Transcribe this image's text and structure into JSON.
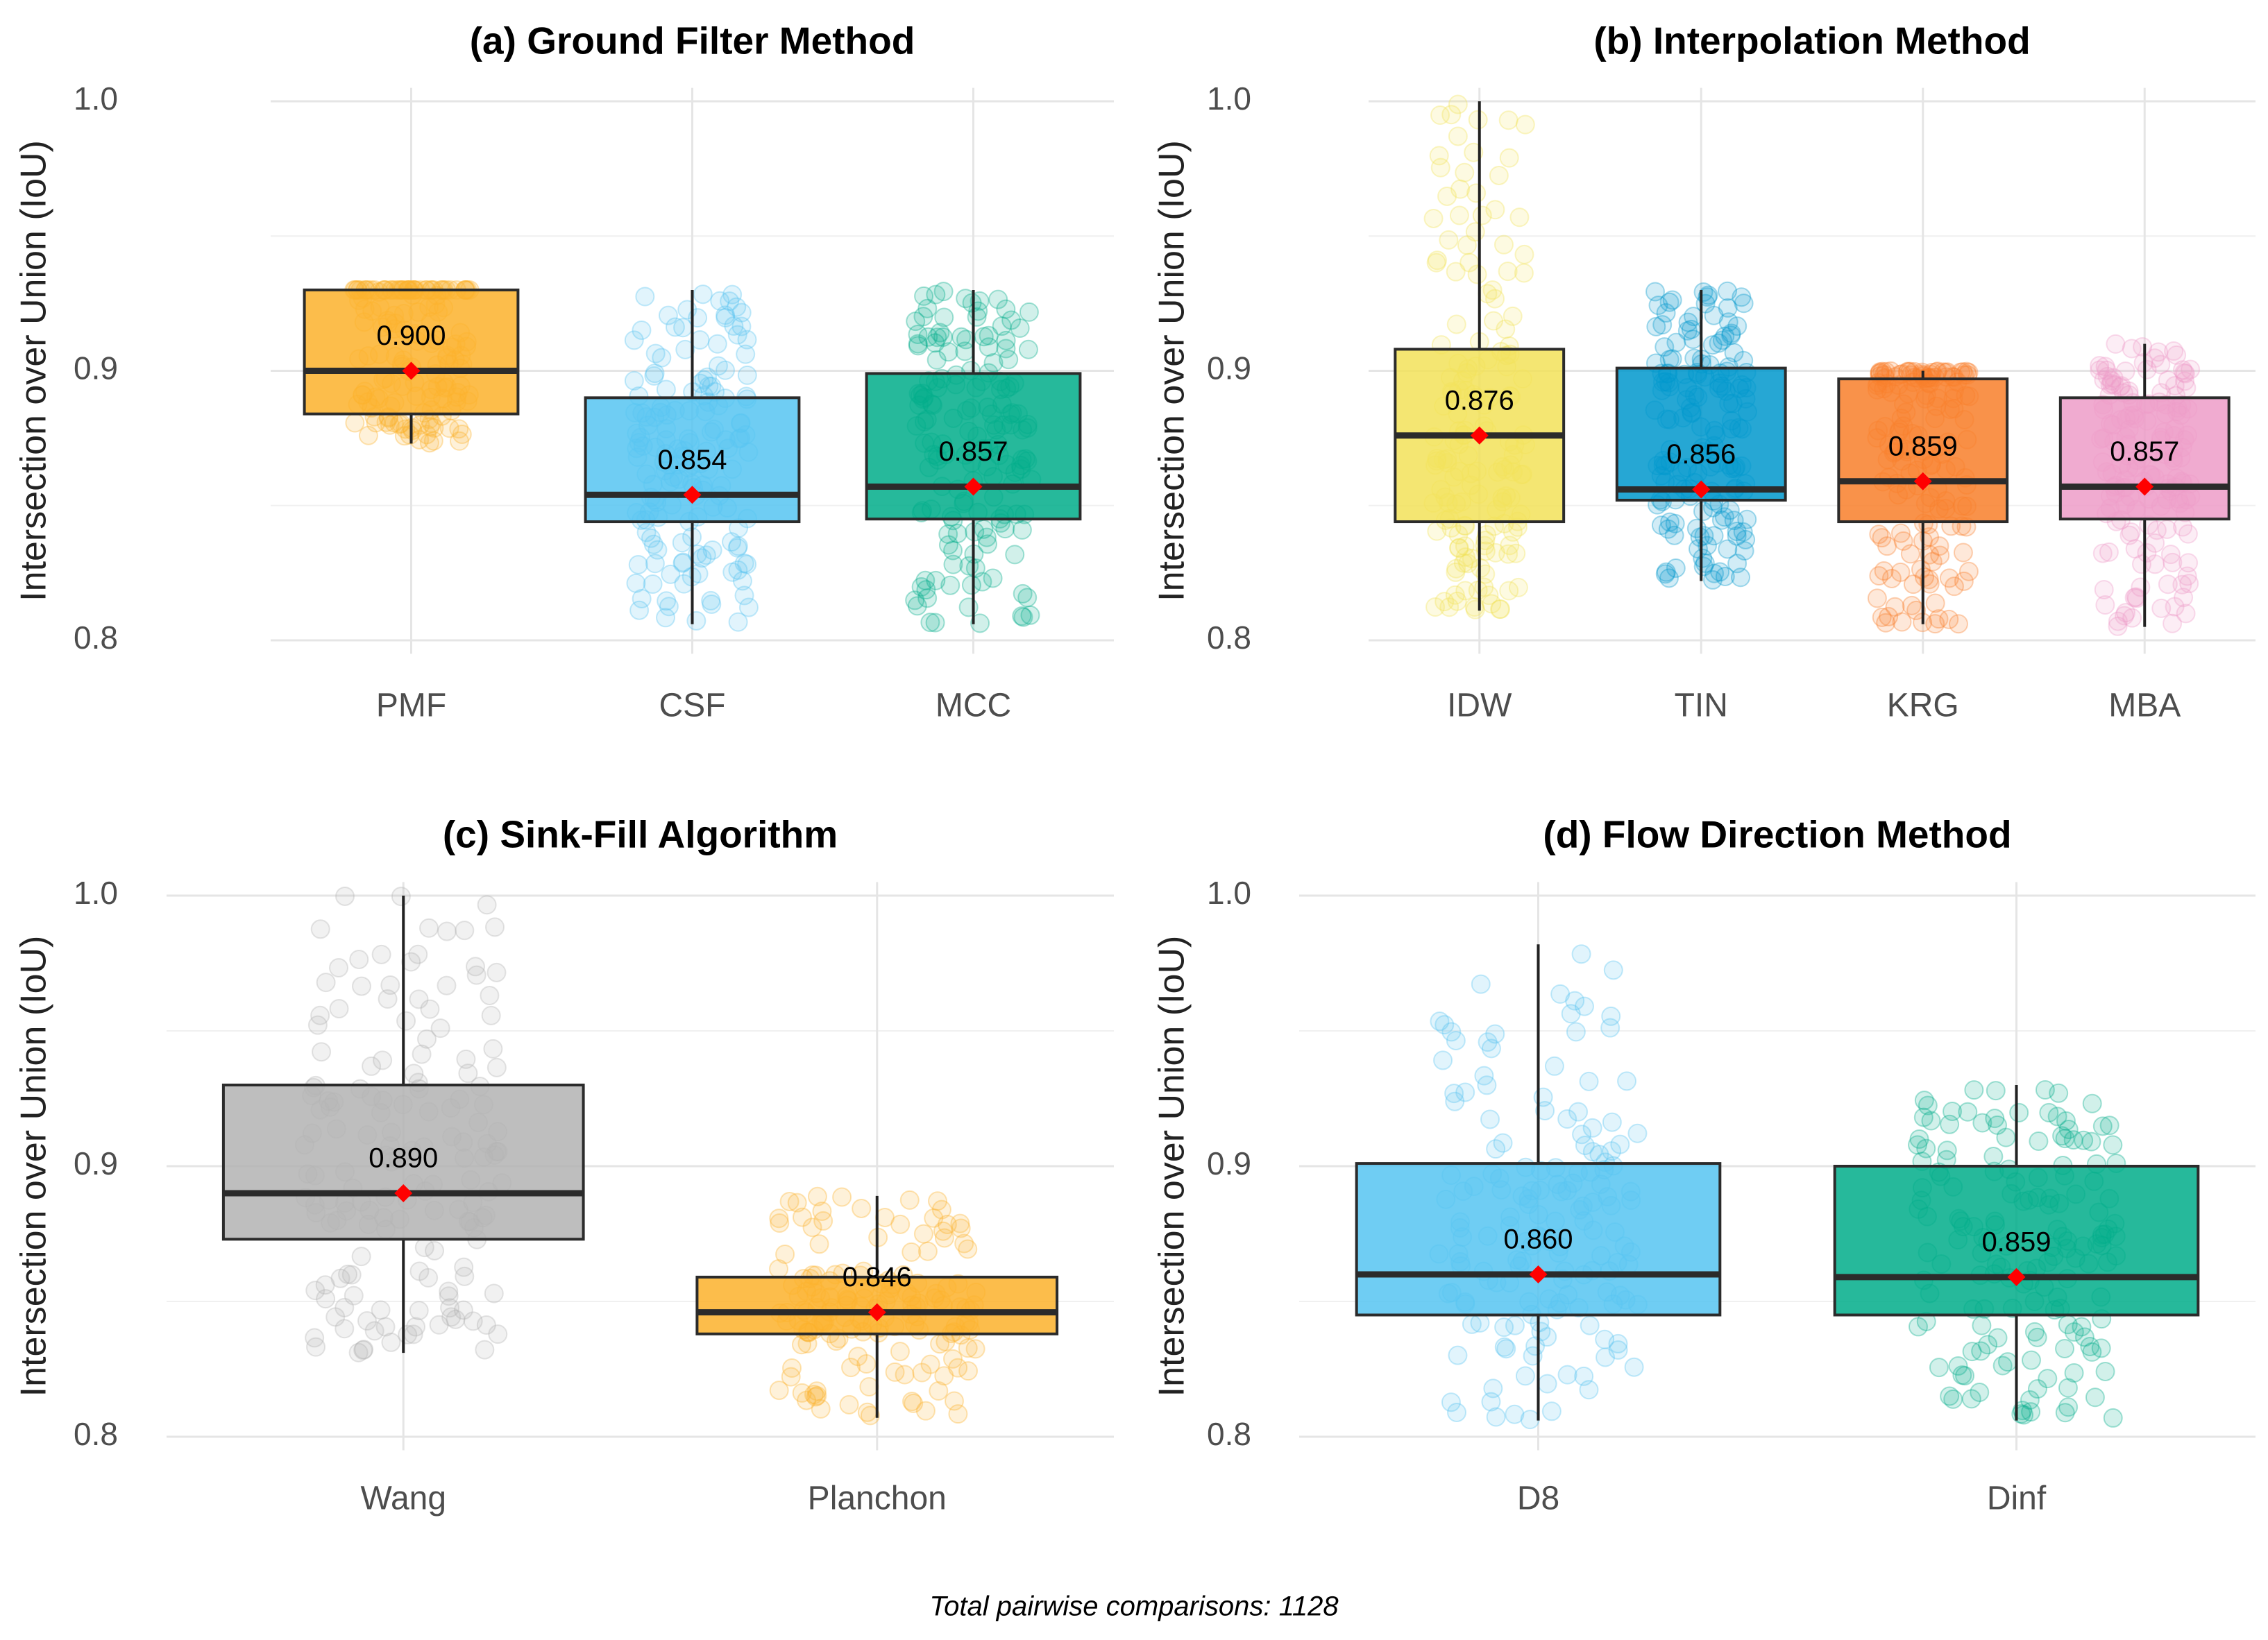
{
  "caption": "Total pairwise comparisons: 1128",
  "chart_data": [
    {
      "type": "box",
      "title": "(a) Ground Filter Method",
      "xlabel": "",
      "ylabel": "Intersection over Union (IoU)",
      "ylim": [
        0.795,
        1.005
      ],
      "yticks": [
        "0.8",
        "0.9",
        "1.0"
      ],
      "categories": [
        "PMF",
        "CSF",
        "MCC"
      ],
      "colors": [
        "#FBB22B",
        "#56C4F1",
        "#00AD8A"
      ],
      "boxes": [
        {
          "q1": 0.884,
          "median": 0.9,
          "q3": 0.93,
          "whisker_low": 0.873,
          "whisker_high": 0.93,
          "mean": 0.9,
          "label": "0.900"
        },
        {
          "q1": 0.844,
          "median": 0.854,
          "q3": 0.89,
          "whisker_low": 0.806,
          "whisker_high": 0.93,
          "mean": 0.854,
          "label": "0.854"
        },
        {
          "q1": 0.845,
          "median": 0.857,
          "q3": 0.899,
          "whisker_low": 0.806,
          "whisker_high": 0.93,
          "mean": 0.857,
          "label": "0.857"
        }
      ]
    },
    {
      "type": "box",
      "title": "(b) Interpolation Method",
      "xlabel": "",
      "ylabel": "Intersection over Union (IoU)",
      "ylim": [
        0.795,
        1.005
      ],
      "yticks": [
        "0.8",
        "0.9",
        "1.0"
      ],
      "categories": [
        "IDW",
        "TIN",
        "KRG",
        "MBA"
      ],
      "colors": [
        "#F2E259",
        "#0098CC",
        "#F87F2A",
        "#ED9CC8"
      ],
      "boxes": [
        {
          "q1": 0.844,
          "median": 0.876,
          "q3": 0.908,
          "whisker_low": 0.811,
          "whisker_high": 1.0,
          "mean": 0.876,
          "label": "0.876"
        },
        {
          "q1": 0.852,
          "median": 0.856,
          "q3": 0.901,
          "whisker_low": 0.822,
          "whisker_high": 0.93,
          "mean": 0.856,
          "label": "0.856"
        },
        {
          "q1": 0.844,
          "median": 0.859,
          "q3": 0.897,
          "whisker_low": 0.806,
          "whisker_high": 0.9,
          "mean": 0.859,
          "label": "0.859"
        },
        {
          "q1": 0.845,
          "median": 0.857,
          "q3": 0.89,
          "whisker_low": 0.805,
          "whisker_high": 0.91,
          "mean": 0.857,
          "label": "0.857"
        }
      ]
    },
    {
      "type": "box",
      "title": "(c) Sink-Fill Algorithm",
      "xlabel": "",
      "ylabel": "Intersection over Union (IoU)",
      "ylim": [
        0.795,
        1.005
      ],
      "yticks": [
        "0.8",
        "0.9",
        "1.0"
      ],
      "categories": [
        "Wang",
        "Planchon"
      ],
      "colors": [
        "#B3B3B3",
        "#FBB22B"
      ],
      "boxes": [
        {
          "q1": 0.873,
          "median": 0.89,
          "q3": 0.93,
          "whisker_low": 0.831,
          "whisker_high": 1.0,
          "mean": 0.89,
          "label": "0.890"
        },
        {
          "q1": 0.838,
          "median": 0.846,
          "q3": 0.859,
          "whisker_low": 0.807,
          "whisker_high": 0.889,
          "mean": 0.846,
          "label": "0.846"
        }
      ]
    },
    {
      "type": "box",
      "title": "(d) Flow Direction Method",
      "xlabel": "",
      "ylabel": "Intersection over Union (IoU)",
      "ylim": [
        0.795,
        1.005
      ],
      "yticks": [
        "0.8",
        "0.9",
        "1.0"
      ],
      "categories": [
        "D8",
        "Dinf"
      ],
      "colors": [
        "#56C4F1",
        "#00AD8A"
      ],
      "boxes": [
        {
          "q1": 0.845,
          "median": 0.86,
          "q3": 0.901,
          "whisker_low": 0.806,
          "whisker_high": 0.982,
          "mean": 0.86,
          "label": "0.860"
        },
        {
          "q1": 0.845,
          "median": 0.859,
          "q3": 0.9,
          "whisker_low": 0.806,
          "whisker_high": 0.93,
          "mean": 0.859,
          "label": "0.859"
        }
      ]
    }
  ]
}
